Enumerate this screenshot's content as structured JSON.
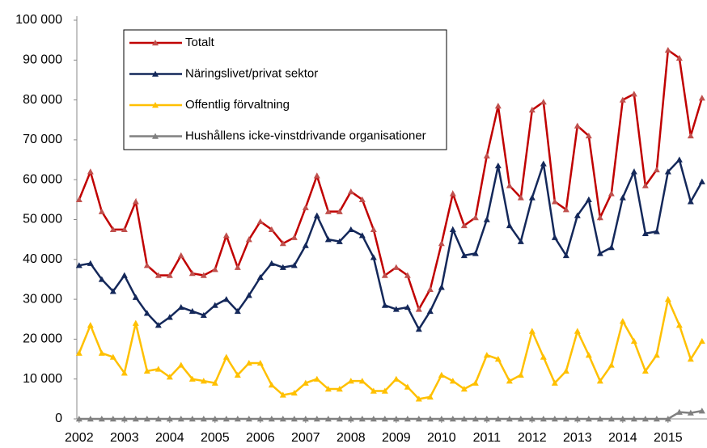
{
  "chart_data": {
    "type": "line",
    "x": [
      2002,
      2002.25,
      2002.5,
      2002.75,
      2003,
      2003.25,
      2003.5,
      2003.75,
      2004,
      2004.25,
      2004.5,
      2004.75,
      2005,
      2005.25,
      2005.5,
      2005.75,
      2006,
      2006.25,
      2006.5,
      2006.75,
      2007,
      2007.25,
      2007.5,
      2007.75,
      2008,
      2008.25,
      2008.5,
      2008.75,
      2009,
      2009.25,
      2009.5,
      2009.75,
      2010,
      2010.25,
      2010.5,
      2010.75,
      2011,
      2011.25,
      2011.5,
      2011.75,
      2012,
      2012.25,
      2012.5,
      2012.75,
      2013,
      2013.25,
      2013.5,
      2013.75,
      2014,
      2014.25,
      2014.5,
      2014.75,
      2015,
      2015.25,
      2015.5,
      2015.75
    ],
    "series": [
      {
        "name": "Totalt",
        "color": "#c00000",
        "values": [
          55000,
          62000,
          52000,
          47500,
          47500,
          54500,
          38500,
          36000,
          36000,
          41000,
          36500,
          36000,
          37500,
          46000,
          38000,
          45000,
          49500,
          47500,
          44000,
          45500,
          53000,
          61000,
          52000,
          52000,
          57000,
          55000,
          47500,
          36000,
          38000,
          36000,
          27500,
          32500,
          44000,
          56500,
          48500,
          50500,
          66000,
          78500,
          58500,
          55500,
          77500,
          79500,
          54500,
          52500,
          73500,
          71000,
          50500,
          56500,
          80000,
          81500,
          58500,
          62500,
          92500,
          90500,
          71000,
          80500
        ]
      },
      {
        "name": "Näringslivet/privat sektor",
        "color": "#14285a",
        "values": [
          38500,
          39000,
          35000,
          32000,
          36000,
          30500,
          26500,
          23500,
          25500,
          28000,
          27000,
          26000,
          28500,
          30000,
          27000,
          31000,
          35500,
          39000,
          38000,
          38500,
          43500,
          51000,
          45000,
          44500,
          47500,
          46000,
          40500,
          28500,
          27500,
          28000,
          22500,
          27000,
          33000,
          47500,
          41000,
          41500,
          50000,
          63500,
          48500,
          44500,
          55500,
          64000,
          45500,
          41000,
          51000,
          55000,
          41500,
          43000,
          55500,
          62000,
          46500,
          47000,
          62000,
          65000,
          54500,
          59500
        ]
      },
      {
        "name": "Offentlig förvaltning",
        "color": "#ffc000",
        "values": [
          16500,
          23500,
          16500,
          15500,
          11500,
          24000,
          12000,
          12500,
          10500,
          13500,
          10000,
          9500,
          9000,
          15500,
          11000,
          14000,
          14000,
          8500,
          6000,
          6500,
          9000,
          10000,
          7500,
          7500,
          9500,
          9500,
          7000,
          7000,
          10000,
          8000,
          5000,
          5500,
          11000,
          9500,
          7500,
          9000,
          16000,
          15000,
          9500,
          11000,
          22000,
          15500,
          9000,
          12000,
          22000,
          16000,
          9500,
          13500,
          24500,
          19500,
          12000,
          16000,
          30000,
          23500,
          15000,
          19500
        ]
      },
      {
        "name": "Hushållens icke-vinstdrivande organisationer",
        "color": "#808080",
        "values": [
          0,
          0,
          0,
          0,
          0,
          0,
          0,
          0,
          0,
          0,
          0,
          0,
          0,
          0,
          0,
          0,
          0,
          0,
          0,
          0,
          0,
          0,
          0,
          0,
          0,
          0,
          0,
          0,
          0,
          0,
          0,
          0,
          0,
          0,
          0,
          0,
          0,
          0,
          0,
          0,
          0,
          0,
          0,
          0,
          0,
          0,
          0,
          0,
          0,
          0,
          0,
          0,
          0,
          1700,
          1500,
          2000
        ]
      }
    ],
    "xlim": [
      2001.95,
      2015.86
    ],
    "xticks": [
      2002,
      2003,
      2004,
      2005,
      2006,
      2007,
      2008,
      2009,
      2010,
      2011,
      2012,
      2013,
      2014,
      2015
    ],
    "ylim": [
      0,
      100000
    ],
    "yticks": [
      0,
      {
        "value": 10000,
        "label": "10 000"
      },
      {
        "value": 20000,
        "label": "20 000"
      },
      {
        "value": 30000,
        "label": "30 000"
      },
      {
        "value": 40000,
        "label": "40 000"
      },
      {
        "value": 50000,
        "label": "50 000"
      },
      {
        "value": 60000,
        "label": "60 000"
      },
      {
        "value": 70000,
        "label": "70 000"
      },
      {
        "value": 80000,
        "label": "80 000"
      },
      {
        "value": 90000,
        "label": "90 000"
      },
      {
        "value": 100000,
        "label": "100 000"
      }
    ],
    "legend": "upper-left",
    "grid": false
  }
}
